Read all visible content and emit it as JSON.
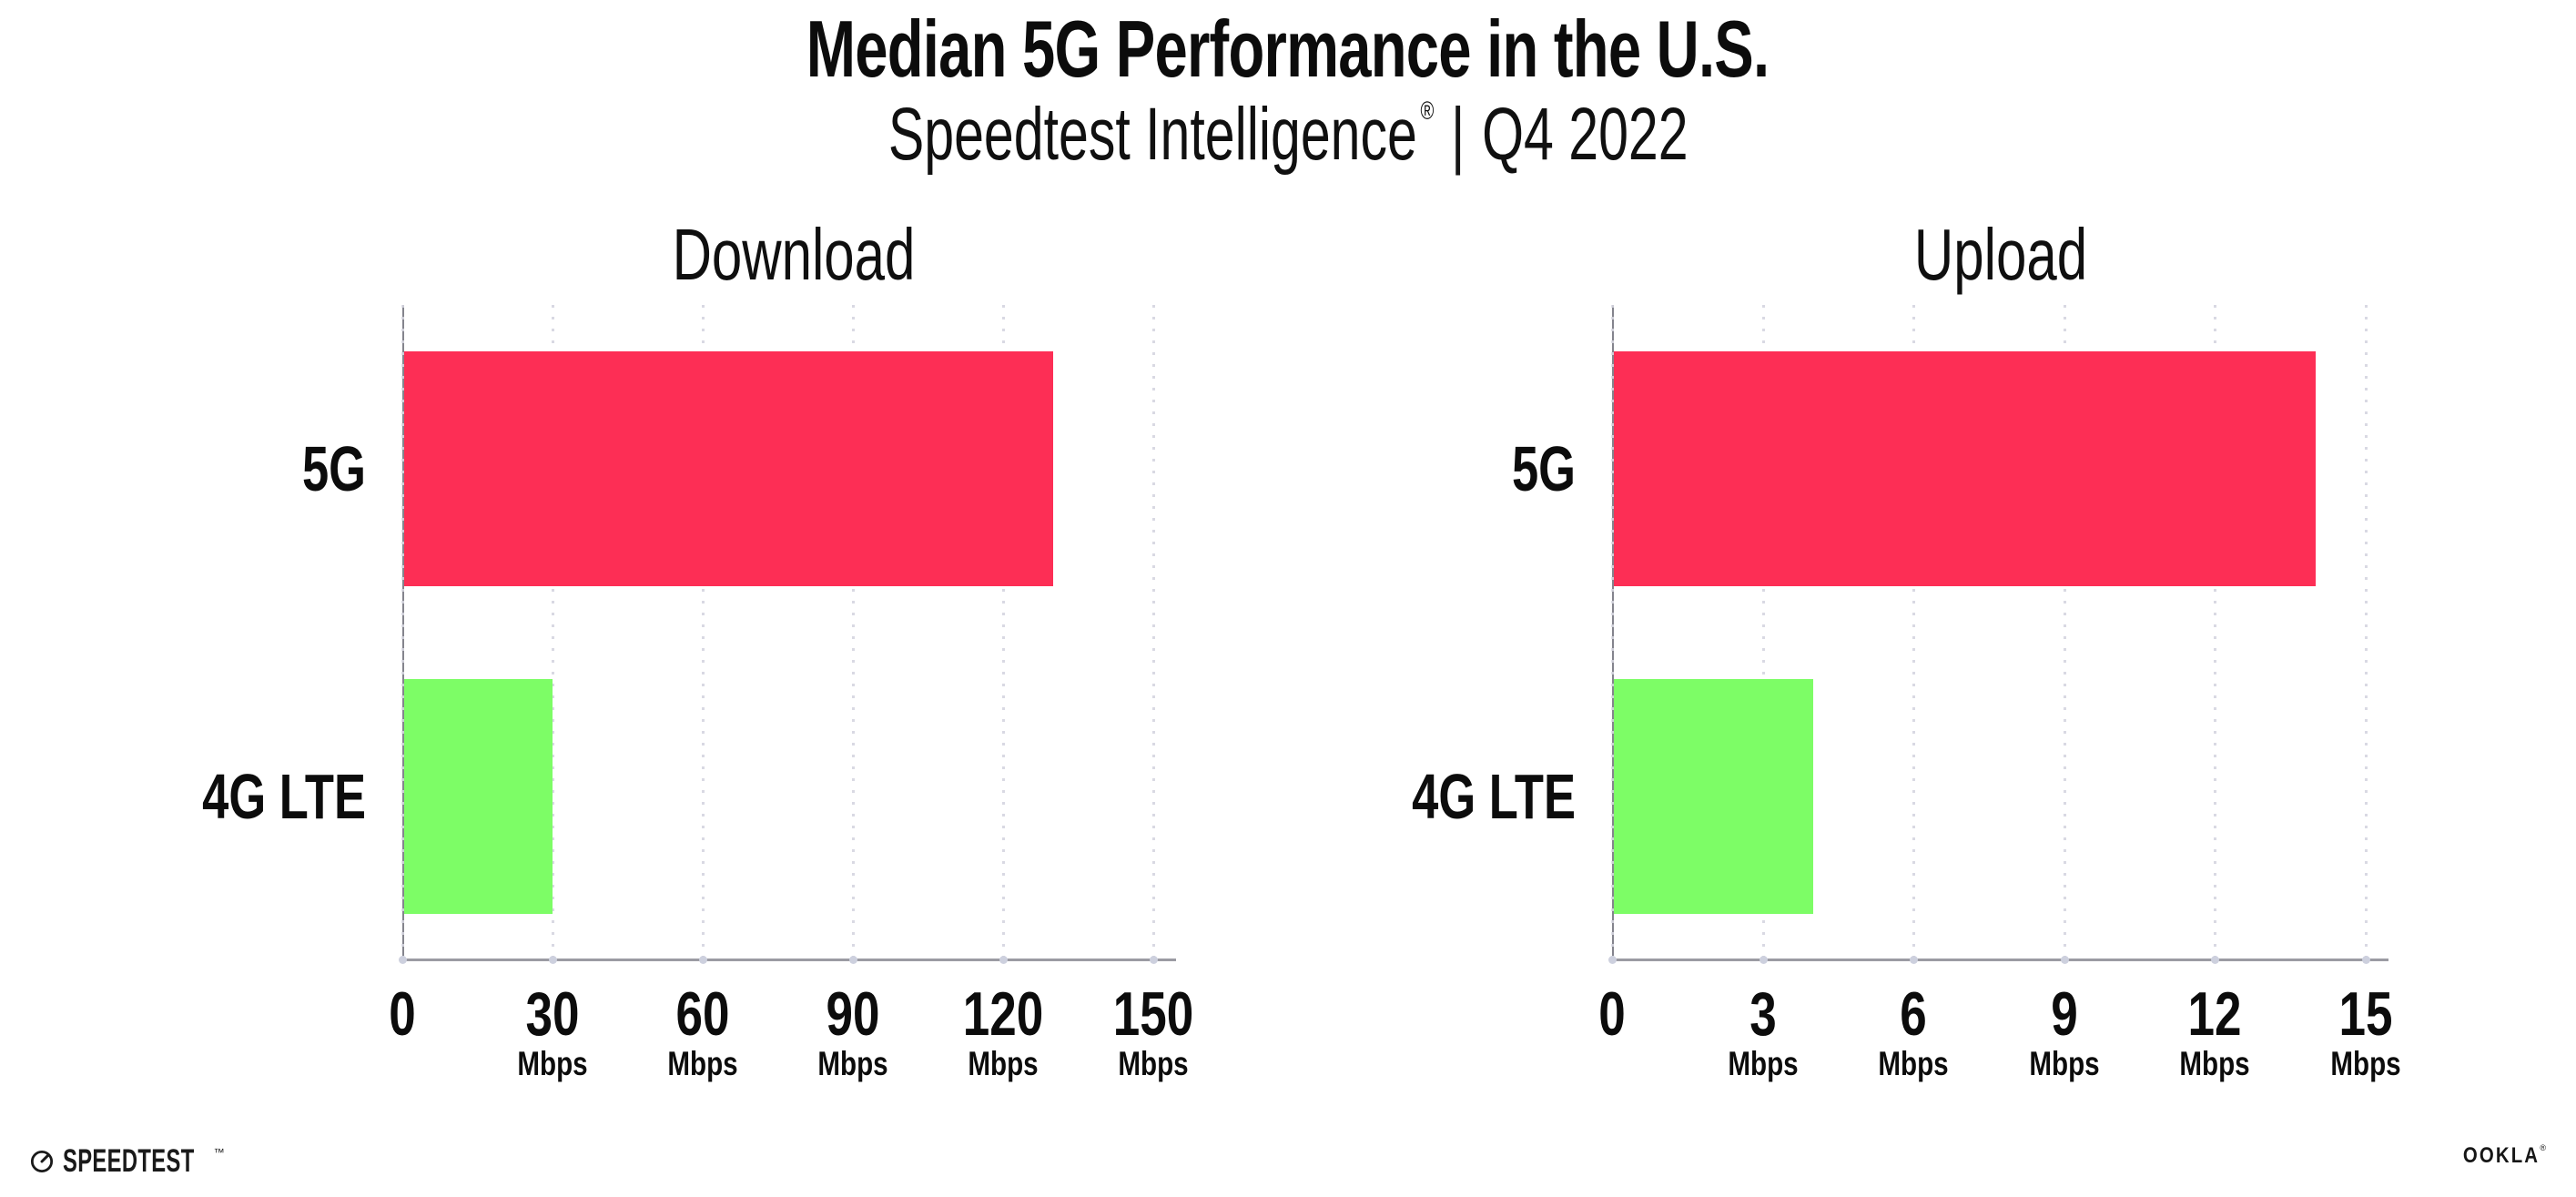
{
  "header": {
    "title": "Median 5G Performance in the U.S.",
    "subtitle_product": "Speedtest Intelligence",
    "subtitle_registered": "®",
    "subtitle_separator": "|",
    "subtitle_period": "Q4 2022"
  },
  "chart_data": [
    {
      "type": "bar",
      "orientation": "horizontal",
      "title": "Download",
      "categories": [
        "5G",
        "4G LTE"
      ],
      "values": [
        130,
        30
      ],
      "unit": "Mbps",
      "xticks": [
        0,
        30,
        60,
        90,
        120,
        150
      ],
      "xlim": [
        0,
        155
      ],
      "xtick_unit_label": "Mbps",
      "bar_colors": [
        "#fd2e55",
        "#7dfd66"
      ],
      "grid": "vertical-dotted",
      "legend": "none"
    },
    {
      "type": "bar",
      "orientation": "horizontal",
      "title": "Upload",
      "categories": [
        "5G",
        "4G LTE"
      ],
      "values": [
        14,
        4
      ],
      "unit": "Mbps",
      "xticks": [
        0,
        3,
        6,
        9,
        12,
        15
      ],
      "xlim": [
        0,
        15.5
      ],
      "xtick_unit_label": "Mbps",
      "bar_colors": [
        "#fd2e55",
        "#7dfd66"
      ],
      "grid": "vertical-dotted",
      "legend": "none"
    }
  ],
  "footer": {
    "speedtest_label": "SPEEDTEST",
    "speedtest_mark": "™",
    "ookla_label": "OOKLA",
    "ookla_mark": "®"
  },
  "colors": {
    "bar_5g": "#fd2e55",
    "bar_4g_lte": "#7dfd66",
    "text": "#0c0c0c",
    "axis_line": "#9b9ba3",
    "gridline": "#d9d9e3",
    "background": "#ffffff"
  }
}
